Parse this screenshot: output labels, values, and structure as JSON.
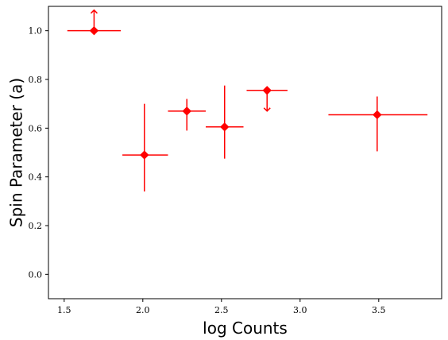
{
  "chart_data": {
    "type": "scatter",
    "title": "",
    "xlabel": "log Counts",
    "ylabel": "Spin Parameter (a)",
    "xlim": [
      1.4,
      3.9
    ],
    "ylim": [
      -0.1,
      1.1
    ],
    "xticks": [
      1.5,
      2.0,
      2.5,
      3.0,
      3.5
    ],
    "xtick_labels": [
      "1.5",
      "2.0",
      "2.5",
      "3.0",
      "3.5"
    ],
    "yticks": [
      0.0,
      0.2,
      0.4,
      0.6,
      0.8,
      1.0
    ],
    "ytick_labels": [
      "0.0",
      "0.2",
      "0.4",
      "0.6",
      "0.8",
      "1.0"
    ],
    "grid": false,
    "legend": null,
    "color": "#ff0000",
    "marker": "diamond",
    "points": [
      {
        "x": 1.69,
        "y": 1.0,
        "xerr": [
          0.17,
          0.17
        ],
        "yerr": null,
        "limit": "lower"
      },
      {
        "x": 2.01,
        "y": 0.49,
        "xerr": [
          0.14,
          0.15
        ],
        "yerr": [
          0.15,
          0.21
        ],
        "limit": null
      },
      {
        "x": 2.28,
        "y": 0.67,
        "xerr": [
          0.12,
          0.12
        ],
        "yerr": [
          0.08,
          0.05
        ],
        "limit": null
      },
      {
        "x": 2.52,
        "y": 0.605,
        "xerr": [
          0.12,
          0.12
        ],
        "yerr": [
          0.13,
          0.17
        ],
        "limit": null
      },
      {
        "x": 2.79,
        "y": 0.755,
        "xerr": [
          0.13,
          0.13
        ],
        "yerr": null,
        "limit": "upper"
      },
      {
        "x": 3.49,
        "y": 0.655,
        "xerr": [
          0.31,
          0.32
        ],
        "yerr": [
          0.15,
          0.075
        ],
        "limit": null
      }
    ]
  }
}
